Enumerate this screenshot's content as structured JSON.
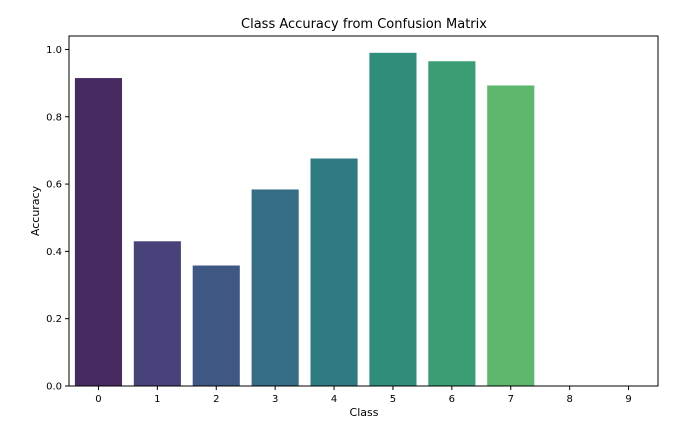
{
  "chart_data": {
    "type": "bar",
    "title": "Class Accuracy from Confusion Matrix",
    "xlabel": "Class",
    "ylabel": "Accuracy",
    "categories": [
      "0",
      "1",
      "2",
      "3",
      "4",
      "5",
      "6",
      "7",
      "8",
      "9"
    ],
    "values": [
      0.915,
      0.43,
      0.358,
      0.584,
      0.676,
      0.99,
      0.965,
      0.893,
      0.0,
      0.0
    ],
    "ylim": [
      0.0,
      1.04
    ],
    "yticks": [
      0.0,
      0.2,
      0.4,
      0.6,
      0.8,
      1.0
    ],
    "ytick_labels": [
      "0.0",
      "0.2",
      "0.4",
      "0.6",
      "0.8",
      "1.0"
    ],
    "colors": [
      "#472a61",
      "#47427a",
      "#3f5883",
      "#366d86",
      "#2e7c82",
      "#2f8d7a",
      "#3a9d74",
      "#5db76c",
      "#86cc5b",
      "#b6de48"
    ],
    "grid": false,
    "legend": "none"
  }
}
